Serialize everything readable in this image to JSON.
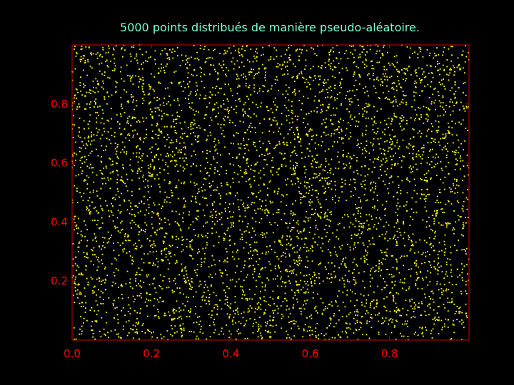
{
  "chart_data": {
    "type": "scatter",
    "title": "5000 points distribués de manière pseudo-aléatoire.",
    "xlabel": "",
    "ylabel": "",
    "xlim": [
      0.0,
      1.0
    ],
    "ylim": [
      0.0,
      1.0
    ],
    "x_ticks": [
      0.0,
      0.2,
      0.4,
      0.6,
      0.8
    ],
    "x_tick_labels": [
      "0.0",
      "0.2",
      "0.4",
      "0.6",
      "0.8"
    ],
    "y_ticks": [
      0.2,
      0.4,
      0.6,
      0.8
    ],
    "y_tick_labels": [
      "0.2",
      "0.4",
      "0.6",
      "0.8"
    ],
    "grid": false,
    "legend": "none",
    "point_count": 5000,
    "distribution": "uniform pseudo-random over [0,1] x [0,1]",
    "series": [
      {
        "marker": "point",
        "color": "#ffff00",
        "count": 5000
      }
    ]
  },
  "colors": {
    "background": "#000000",
    "axes_frame": "#cc0000",
    "tick_labels": "#ff0000",
    "title": "#7fffd4",
    "points": "#ffff00"
  }
}
